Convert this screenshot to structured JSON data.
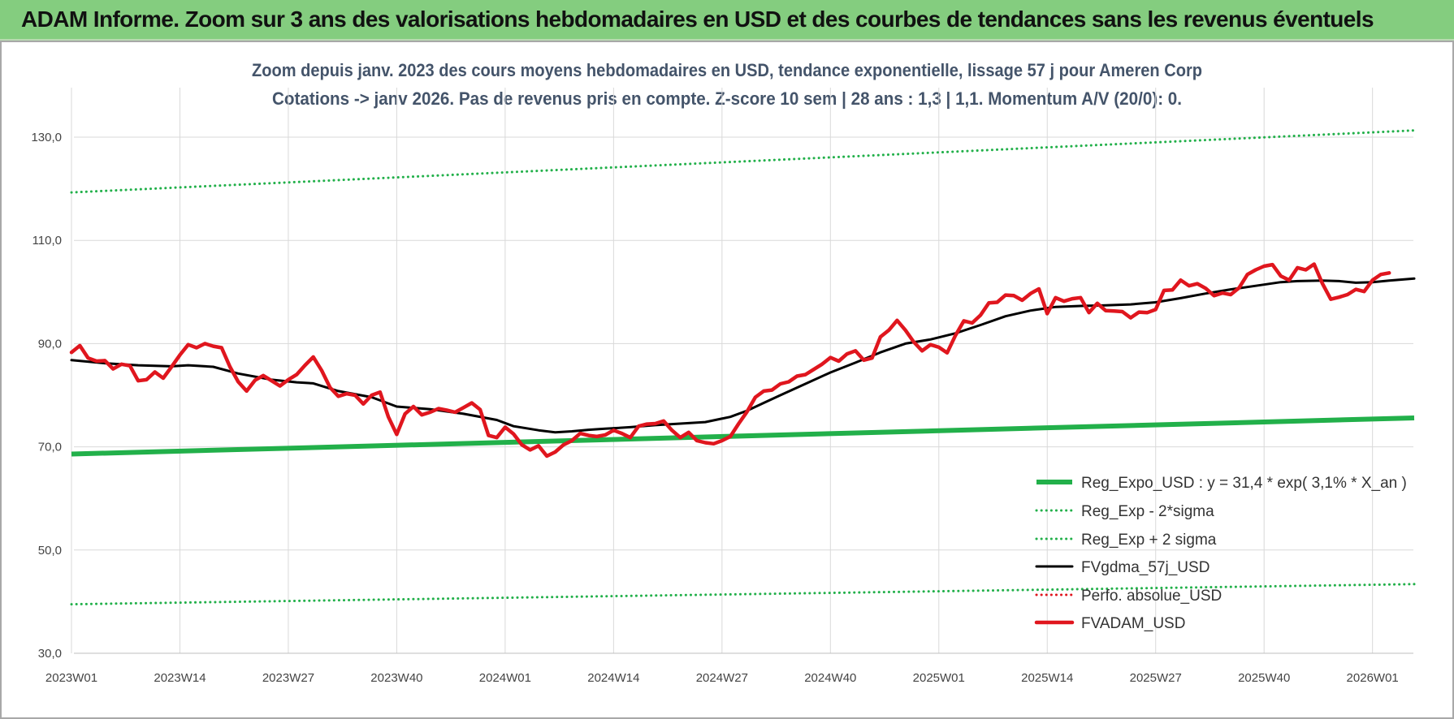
{
  "banner": {
    "title": "ADAM Informe. Zoom sur 3 ans des valorisations hebdomadaires en USD et des courbes de tendances sans les revenus éventuels"
  },
  "chart_data": {
    "type": "line",
    "title": "Zoom depuis janv. 2023 des cours moyens hebdomadaires en USD, tendance exponentielle, lissage 57 j pour Ameren Corp",
    "subtitle": "Cotations -> janv 2026. Pas de revenus pris en compte. Z-score 10 sem | 28 ans : 1,3 | 1,1. Momentum A/V (20/0): 0.",
    "xlabel": "",
    "ylabel": "",
    "ylim": [
      30,
      140
    ],
    "yticks": [
      30,
      50,
      70,
      90,
      110,
      130
    ],
    "ytick_labels": [
      "30,0",
      "50,0",
      "70,0",
      "90,0",
      "110,0",
      "130,0"
    ],
    "x_count": 162,
    "xticks": [
      {
        "index": 0,
        "label": "2023W01"
      },
      {
        "index": 13,
        "label": "2023W14"
      },
      {
        "index": 26,
        "label": "2023W27"
      },
      {
        "index": 39,
        "label": "2023W40"
      },
      {
        "index": 52,
        "label": "2024W01"
      },
      {
        "index": 65,
        "label": "2024W14"
      },
      {
        "index": 78,
        "label": "2024W27"
      },
      {
        "index": 91,
        "label": "2024W40"
      },
      {
        "index": 104,
        "label": "2025W01"
      },
      {
        "index": 117,
        "label": "2025W14"
      },
      {
        "index": 130,
        "label": "2025W27"
      },
      {
        "index": 143,
        "label": "2025W40"
      },
      {
        "index": 156,
        "label": "2026W01"
      }
    ],
    "grid": true,
    "legend_position": "bottom-right",
    "series": [
      {
        "key": "reg",
        "name": "Reg_Expo_USD : y = 31,4 * exp( 3,1% *  X_an )",
        "color": "#22b04a",
        "style": "solid-thick",
        "points": [
          [
            0,
            68.6
          ],
          [
            161,
            75.6
          ]
        ]
      },
      {
        "key": "low",
        "name": "Reg_Exp - 2*sigma",
        "color": "#22b04a",
        "style": "dotted",
        "points": [
          [
            0,
            39.5
          ],
          [
            161,
            43.4
          ]
        ]
      },
      {
        "key": "high",
        "name": "Reg_Exp + 2 sigma",
        "color": "#22b04a",
        "style": "dotted",
        "points": [
          [
            0,
            119.3
          ],
          [
            161,
            131.3
          ]
        ]
      },
      {
        "key": "fv",
        "name": "FVgdma_57j_USD",
        "color": "#000000",
        "style": "solid",
        "points": [
          [
            0,
            86.8
          ],
          [
            4,
            86.2
          ],
          [
            8,
            85.8
          ],
          [
            12,
            85.6
          ],
          [
            14,
            85.8
          ],
          [
            17,
            85.5
          ],
          [
            20,
            84.2
          ],
          [
            24,
            83.0
          ],
          [
            27,
            82.5
          ],
          [
            29,
            82.3
          ],
          [
            32,
            80.8
          ],
          [
            36,
            79.6
          ],
          [
            39,
            77.8
          ],
          [
            43,
            77.3
          ],
          [
            47,
            76.4
          ],
          [
            51,
            75.2
          ],
          [
            53,
            74.0
          ],
          [
            56,
            73.2
          ],
          [
            58,
            72.8
          ],
          [
            60,
            73.0
          ],
          [
            62,
            73.3
          ],
          [
            64,
            73.5
          ],
          [
            67,
            73.8
          ],
          [
            70,
            74.2
          ],
          [
            73,
            74.5
          ],
          [
            76,
            74.8
          ],
          [
            79,
            75.8
          ],
          [
            81,
            77.0
          ],
          [
            83,
            78.5
          ],
          [
            85,
            80.0
          ],
          [
            88,
            82.2
          ],
          [
            91,
            84.4
          ],
          [
            94,
            86.3
          ],
          [
            97,
            88.3
          ],
          [
            100,
            90.0
          ],
          [
            103,
            90.8
          ],
          [
            106,
            92.0
          ],
          [
            109,
            93.6
          ],
          [
            112,
            95.3
          ],
          [
            115,
            96.4
          ],
          [
            118,
            97.1
          ],
          [
            121,
            97.3
          ],
          [
            124,
            97.4
          ],
          [
            127,
            97.6
          ],
          [
            130,
            98.0
          ],
          [
            133,
            98.8
          ],
          [
            136,
            99.7
          ],
          [
            139,
            100.5
          ],
          [
            142,
            101.2
          ],
          [
            145,
            101.9
          ],
          [
            147,
            102.1
          ],
          [
            150,
            102.2
          ],
          [
            152,
            102.1
          ],
          [
            154,
            101.8
          ],
          [
            156,
            101.9
          ],
          [
            158,
            102.2
          ],
          [
            161,
            102.6
          ]
        ]
      },
      {
        "key": "perf",
        "name": "Perfo. absolue_USD",
        "color": "#e0161e",
        "style": "dotted",
        "points": []
      },
      {
        "key": "adam",
        "name": "FVADAM_USD",
        "color": "#e0161e",
        "style": "solid-thick",
        "points": [
          [
            0,
            88.3
          ],
          [
            1,
            89.6
          ],
          [
            2,
            87.2
          ],
          [
            3,
            86.6
          ],
          [
            4,
            86.7
          ],
          [
            5,
            85.1
          ],
          [
            6,
            86.0
          ],
          [
            7,
            85.7
          ],
          [
            8,
            82.8
          ],
          [
            9,
            83.0
          ],
          [
            10,
            84.5
          ],
          [
            11,
            83.3
          ],
          [
            12,
            85.5
          ],
          [
            13,
            87.8
          ],
          [
            14,
            89.8
          ],
          [
            15,
            89.2
          ],
          [
            16,
            90.0
          ],
          [
            17,
            89.5
          ],
          [
            18,
            89.2
          ],
          [
            19,
            85.5
          ],
          [
            20,
            82.6
          ],
          [
            21,
            80.8
          ],
          [
            22,
            82.9
          ],
          [
            23,
            83.8
          ],
          [
            24,
            82.8
          ],
          [
            25,
            81.8
          ],
          [
            26,
            83.0
          ],
          [
            27,
            84.0
          ],
          [
            28,
            85.8
          ],
          [
            29,
            87.4
          ],
          [
            30,
            84.8
          ],
          [
            31,
            81.5
          ],
          [
            32,
            79.8
          ],
          [
            33,
            80.3
          ],
          [
            34,
            80.0
          ],
          [
            35,
            78.3
          ],
          [
            36,
            80.0
          ],
          [
            37,
            80.6
          ],
          [
            38,
            75.8
          ],
          [
            39,
            72.4
          ],
          [
            40,
            76.4
          ],
          [
            41,
            77.8
          ],
          [
            42,
            76.2
          ],
          [
            43,
            76.7
          ],
          [
            44,
            77.4
          ],
          [
            45,
            77.1
          ],
          [
            46,
            76.7
          ],
          [
            47,
            77.6
          ],
          [
            48,
            78.5
          ],
          [
            49,
            77.2
          ],
          [
            50,
            72.2
          ],
          [
            51,
            71.8
          ],
          [
            52,
            73.8
          ],
          [
            53,
            72.5
          ],
          [
            54,
            70.4
          ],
          [
            55,
            69.4
          ],
          [
            56,
            70.2
          ],
          [
            57,
            68.2
          ],
          [
            58,
            69.0
          ],
          [
            59,
            70.4
          ],
          [
            60,
            71.2
          ],
          [
            61,
            72.6
          ],
          [
            62,
            72.2
          ],
          [
            63,
            72.0
          ],
          [
            64,
            72.3
          ],
          [
            65,
            73.2
          ],
          [
            66,
            72.6
          ],
          [
            67,
            71.8
          ],
          [
            68,
            74.0
          ],
          [
            69,
            74.4
          ],
          [
            70,
            74.5
          ],
          [
            71,
            75.0
          ],
          [
            72,
            73.2
          ],
          [
            73,
            71.8
          ],
          [
            74,
            72.8
          ],
          [
            75,
            71.2
          ],
          [
            76,
            70.8
          ],
          [
            77,
            70.6
          ],
          [
            78,
            71.2
          ],
          [
            79,
            72.0
          ],
          [
            80,
            74.5
          ],
          [
            81,
            76.8
          ],
          [
            82,
            79.6
          ],
          [
            83,
            80.8
          ],
          [
            84,
            81.0
          ],
          [
            85,
            82.2
          ],
          [
            86,
            82.6
          ],
          [
            87,
            83.7
          ],
          [
            88,
            84.0
          ],
          [
            89,
            85.0
          ],
          [
            90,
            86.0
          ],
          [
            91,
            87.3
          ],
          [
            92,
            86.6
          ],
          [
            93,
            88.0
          ],
          [
            94,
            88.6
          ],
          [
            95,
            86.8
          ],
          [
            96,
            87.2
          ],
          [
            97,
            91.3
          ],
          [
            98,
            92.6
          ],
          [
            99,
            94.5
          ],
          [
            100,
            92.6
          ],
          [
            101,
            90.3
          ],
          [
            102,
            88.6
          ],
          [
            103,
            89.8
          ],
          [
            104,
            89.3
          ],
          [
            105,
            88.2
          ],
          [
            106,
            91.6
          ],
          [
            107,
            94.4
          ],
          [
            108,
            94.0
          ],
          [
            109,
            95.5
          ],
          [
            110,
            97.9
          ],
          [
            111,
            98.0
          ],
          [
            112,
            99.4
          ],
          [
            113,
            99.3
          ],
          [
            114,
            98.4
          ],
          [
            115,
            99.7
          ],
          [
            116,
            100.6
          ],
          [
            117,
            95.8
          ],
          [
            118,
            98.9
          ],
          [
            119,
            98.2
          ],
          [
            120,
            98.7
          ],
          [
            121,
            98.9
          ],
          [
            122,
            96.0
          ],
          [
            123,
            97.8
          ],
          [
            124,
            96.4
          ],
          [
            125,
            96.3
          ],
          [
            126,
            96.2
          ],
          [
            127,
            95.0
          ],
          [
            128,
            96.1
          ],
          [
            129,
            96.0
          ],
          [
            130,
            96.6
          ],
          [
            131,
            100.3
          ],
          [
            132,
            100.4
          ],
          [
            133,
            102.3
          ],
          [
            134,
            101.2
          ],
          [
            135,
            101.6
          ],
          [
            136,
            100.7
          ],
          [
            137,
            99.3
          ],
          [
            138,
            99.8
          ],
          [
            139,
            99.5
          ],
          [
            140,
            100.8
          ],
          [
            141,
            103.4
          ],
          [
            142,
            104.3
          ],
          [
            143,
            105.0
          ],
          [
            144,
            105.3
          ],
          [
            145,
            103.1
          ],
          [
            146,
            102.3
          ],
          [
            147,
            104.7
          ],
          [
            148,
            104.3
          ],
          [
            149,
            105.4
          ],
          [
            150,
            101.6
          ],
          [
            151,
            98.6
          ],
          [
            152,
            99.0
          ],
          [
            153,
            99.5
          ],
          [
            154,
            100.5
          ],
          [
            155,
            100.1
          ],
          [
            156,
            102.3
          ],
          [
            157,
            103.4
          ],
          [
            158,
            103.7
          ]
        ]
      }
    ]
  }
}
